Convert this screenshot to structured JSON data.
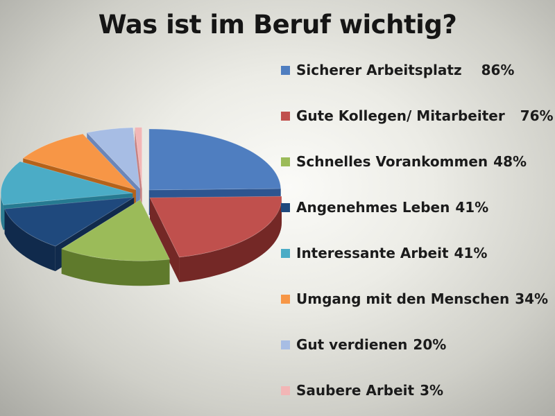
{
  "slide": {
    "title": "Was ist im Beruf wichtig?"
  },
  "chart_data": {
    "type": "pie",
    "title": "Was ist im Beruf wichtig?",
    "style": "3d-exploded",
    "legend_position": "right",
    "slices": [
      {
        "label": "Sicherer Arbeitsplatz",
        "value_text": "86%",
        "value": 86,
        "color": "#4f7ec0",
        "dark": "#2d5590"
      },
      {
        "label": "Gute Kollegen/ Mitarbeiter",
        "value_text": "76%",
        "value": 76,
        "color": "#c0504d",
        "dark": "#742826"
      },
      {
        "label": "Schnelles Vorankommen",
        "value_text": "48%",
        "value": 48,
        "color": "#9bbb59",
        "dark": "#5f7a2c"
      },
      {
        "label": "Angenehmes Leben",
        "value_text": "41%",
        "value": 41,
        "color": "#1f497d",
        "dark": "#102a4c"
      },
      {
        "label": "Interessante Arbeit",
        "value_text": "41%",
        "value": 41,
        "color": "#4bacc6",
        "dark": "#267a91"
      },
      {
        "label": "Umgang mit den Menschen",
        "value_text": "34%",
        "value": 34,
        "color": "#f79646",
        "dark": "#b5621a"
      },
      {
        "label": "Gut verdienen",
        "value_text": "20%",
        "value": 20,
        "color": "#a7bde4",
        "dark": "#6c86b8"
      },
      {
        "label": "Saubere Arbeit",
        "value_text": "3%",
        "value": 3,
        "color": "#f2b6b6",
        "dark": "#c68080"
      }
    ]
  }
}
